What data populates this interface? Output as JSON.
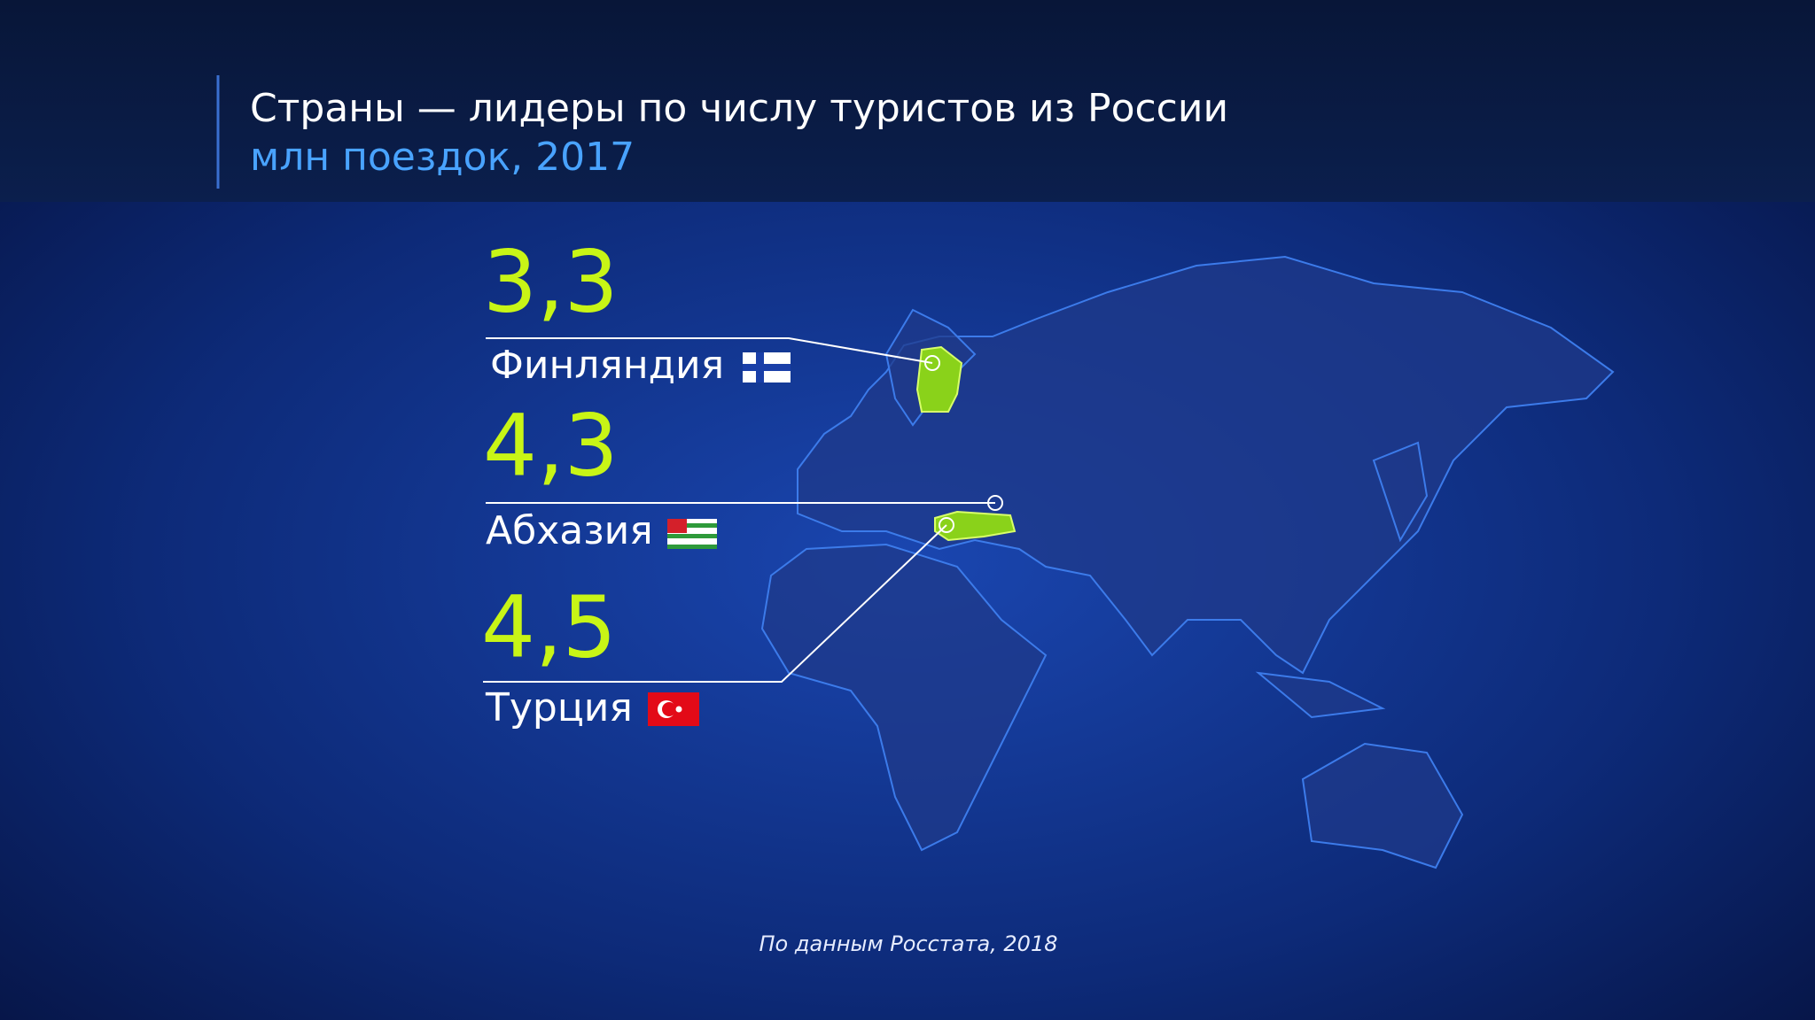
{
  "header": {
    "title": "Страны — лидеры по числу туристов из России",
    "subtitle": "млн поездок, 2017"
  },
  "items": [
    {
      "value": "3,3",
      "country": "Финляндия"
    },
    {
      "value": "4,3",
      "country": "Абхазия"
    },
    {
      "value": "4,5",
      "country": "Турция"
    }
  ],
  "source": "По данным Росстата, 2018"
}
